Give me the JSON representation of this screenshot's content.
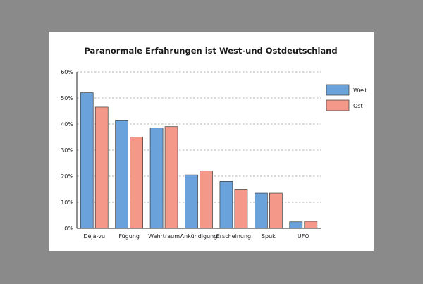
{
  "chart_data": {
    "type": "bar",
    "title": "Paranormale Erfahrungen ist West-und Ostdeutschland",
    "xlabel": "",
    "ylabel": "",
    "ylim": [
      0,
      60
    ],
    "yticks": [
      0,
      10,
      20,
      30,
      40,
      50,
      60
    ],
    "ytick_labels": [
      "0%",
      "10%",
      "20%",
      "30%",
      "40%",
      "50%",
      "60%"
    ],
    "grid": true,
    "legend_position": "right",
    "categories": [
      "Déjà-vu",
      "Fügung",
      "Wahrtraum",
      "Ankündigung",
      "Erscheinung",
      "Spuk",
      "UFO"
    ],
    "series": [
      {
        "name": "West",
        "color": "#6aa2dc",
        "values": [
          52,
          41.5,
          38.5,
          20.5,
          18,
          13.5,
          2.5
        ]
      },
      {
        "name": "Ost",
        "color": "#f4998a",
        "values": [
          46.5,
          35,
          39,
          22,
          15,
          13.5,
          2.7
        ]
      }
    ]
  }
}
